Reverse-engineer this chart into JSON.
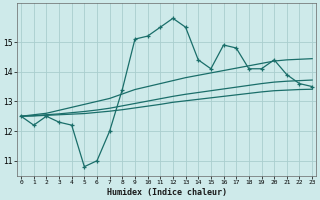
{
  "xlabel": "Humidex (Indice chaleur)",
  "bg_color": "#ceeaea",
  "grid_color": "#aacece",
  "line_color": "#1a6e6a",
  "x_main": [
    0,
    1,
    2,
    3,
    4,
    5,
    6,
    7,
    8,
    9,
    10,
    11,
    12,
    13,
    14,
    15,
    16,
    17,
    18,
    19,
    20,
    21,
    22,
    23
  ],
  "y_main": [
    12.5,
    12.2,
    12.5,
    12.3,
    12.2,
    10.8,
    11.0,
    12.0,
    13.4,
    15.1,
    15.2,
    15.5,
    15.8,
    15.5,
    14.4,
    14.1,
    14.9,
    14.8,
    14.1,
    14.1,
    14.4,
    13.9,
    13.6,
    13.5
  ],
  "y_line1": [
    12.5,
    12.55,
    12.6,
    12.7,
    12.8,
    12.9,
    13.0,
    13.1,
    13.25,
    13.4,
    13.5,
    13.6,
    13.7,
    13.8,
    13.88,
    13.96,
    14.04,
    14.12,
    14.2,
    14.28,
    14.36,
    14.4,
    14.42,
    14.44
  ],
  "y_line2": [
    12.5,
    12.52,
    12.55,
    12.58,
    12.62,
    12.66,
    12.71,
    12.77,
    12.85,
    12.93,
    13.01,
    13.09,
    13.17,
    13.24,
    13.3,
    13.36,
    13.42,
    13.48,
    13.54,
    13.6,
    13.65,
    13.68,
    13.7,
    13.72
  ],
  "y_line3": [
    12.5,
    12.51,
    12.53,
    12.55,
    12.57,
    12.59,
    12.63,
    12.67,
    12.72,
    12.78,
    12.84,
    12.9,
    12.97,
    13.02,
    13.07,
    13.12,
    13.17,
    13.22,
    13.27,
    13.32,
    13.36,
    13.38,
    13.4,
    13.41
  ],
  "ylim": [
    10.5,
    16.3
  ],
  "xlim": [
    -0.3,
    23.3
  ],
  "yticks": [
    11,
    12,
    13,
    14,
    15
  ],
  "xticks": [
    0,
    1,
    2,
    3,
    4,
    5,
    6,
    7,
    8,
    9,
    10,
    11,
    12,
    13,
    14,
    15,
    16,
    17,
    18,
    19,
    20,
    21,
    22,
    23
  ]
}
